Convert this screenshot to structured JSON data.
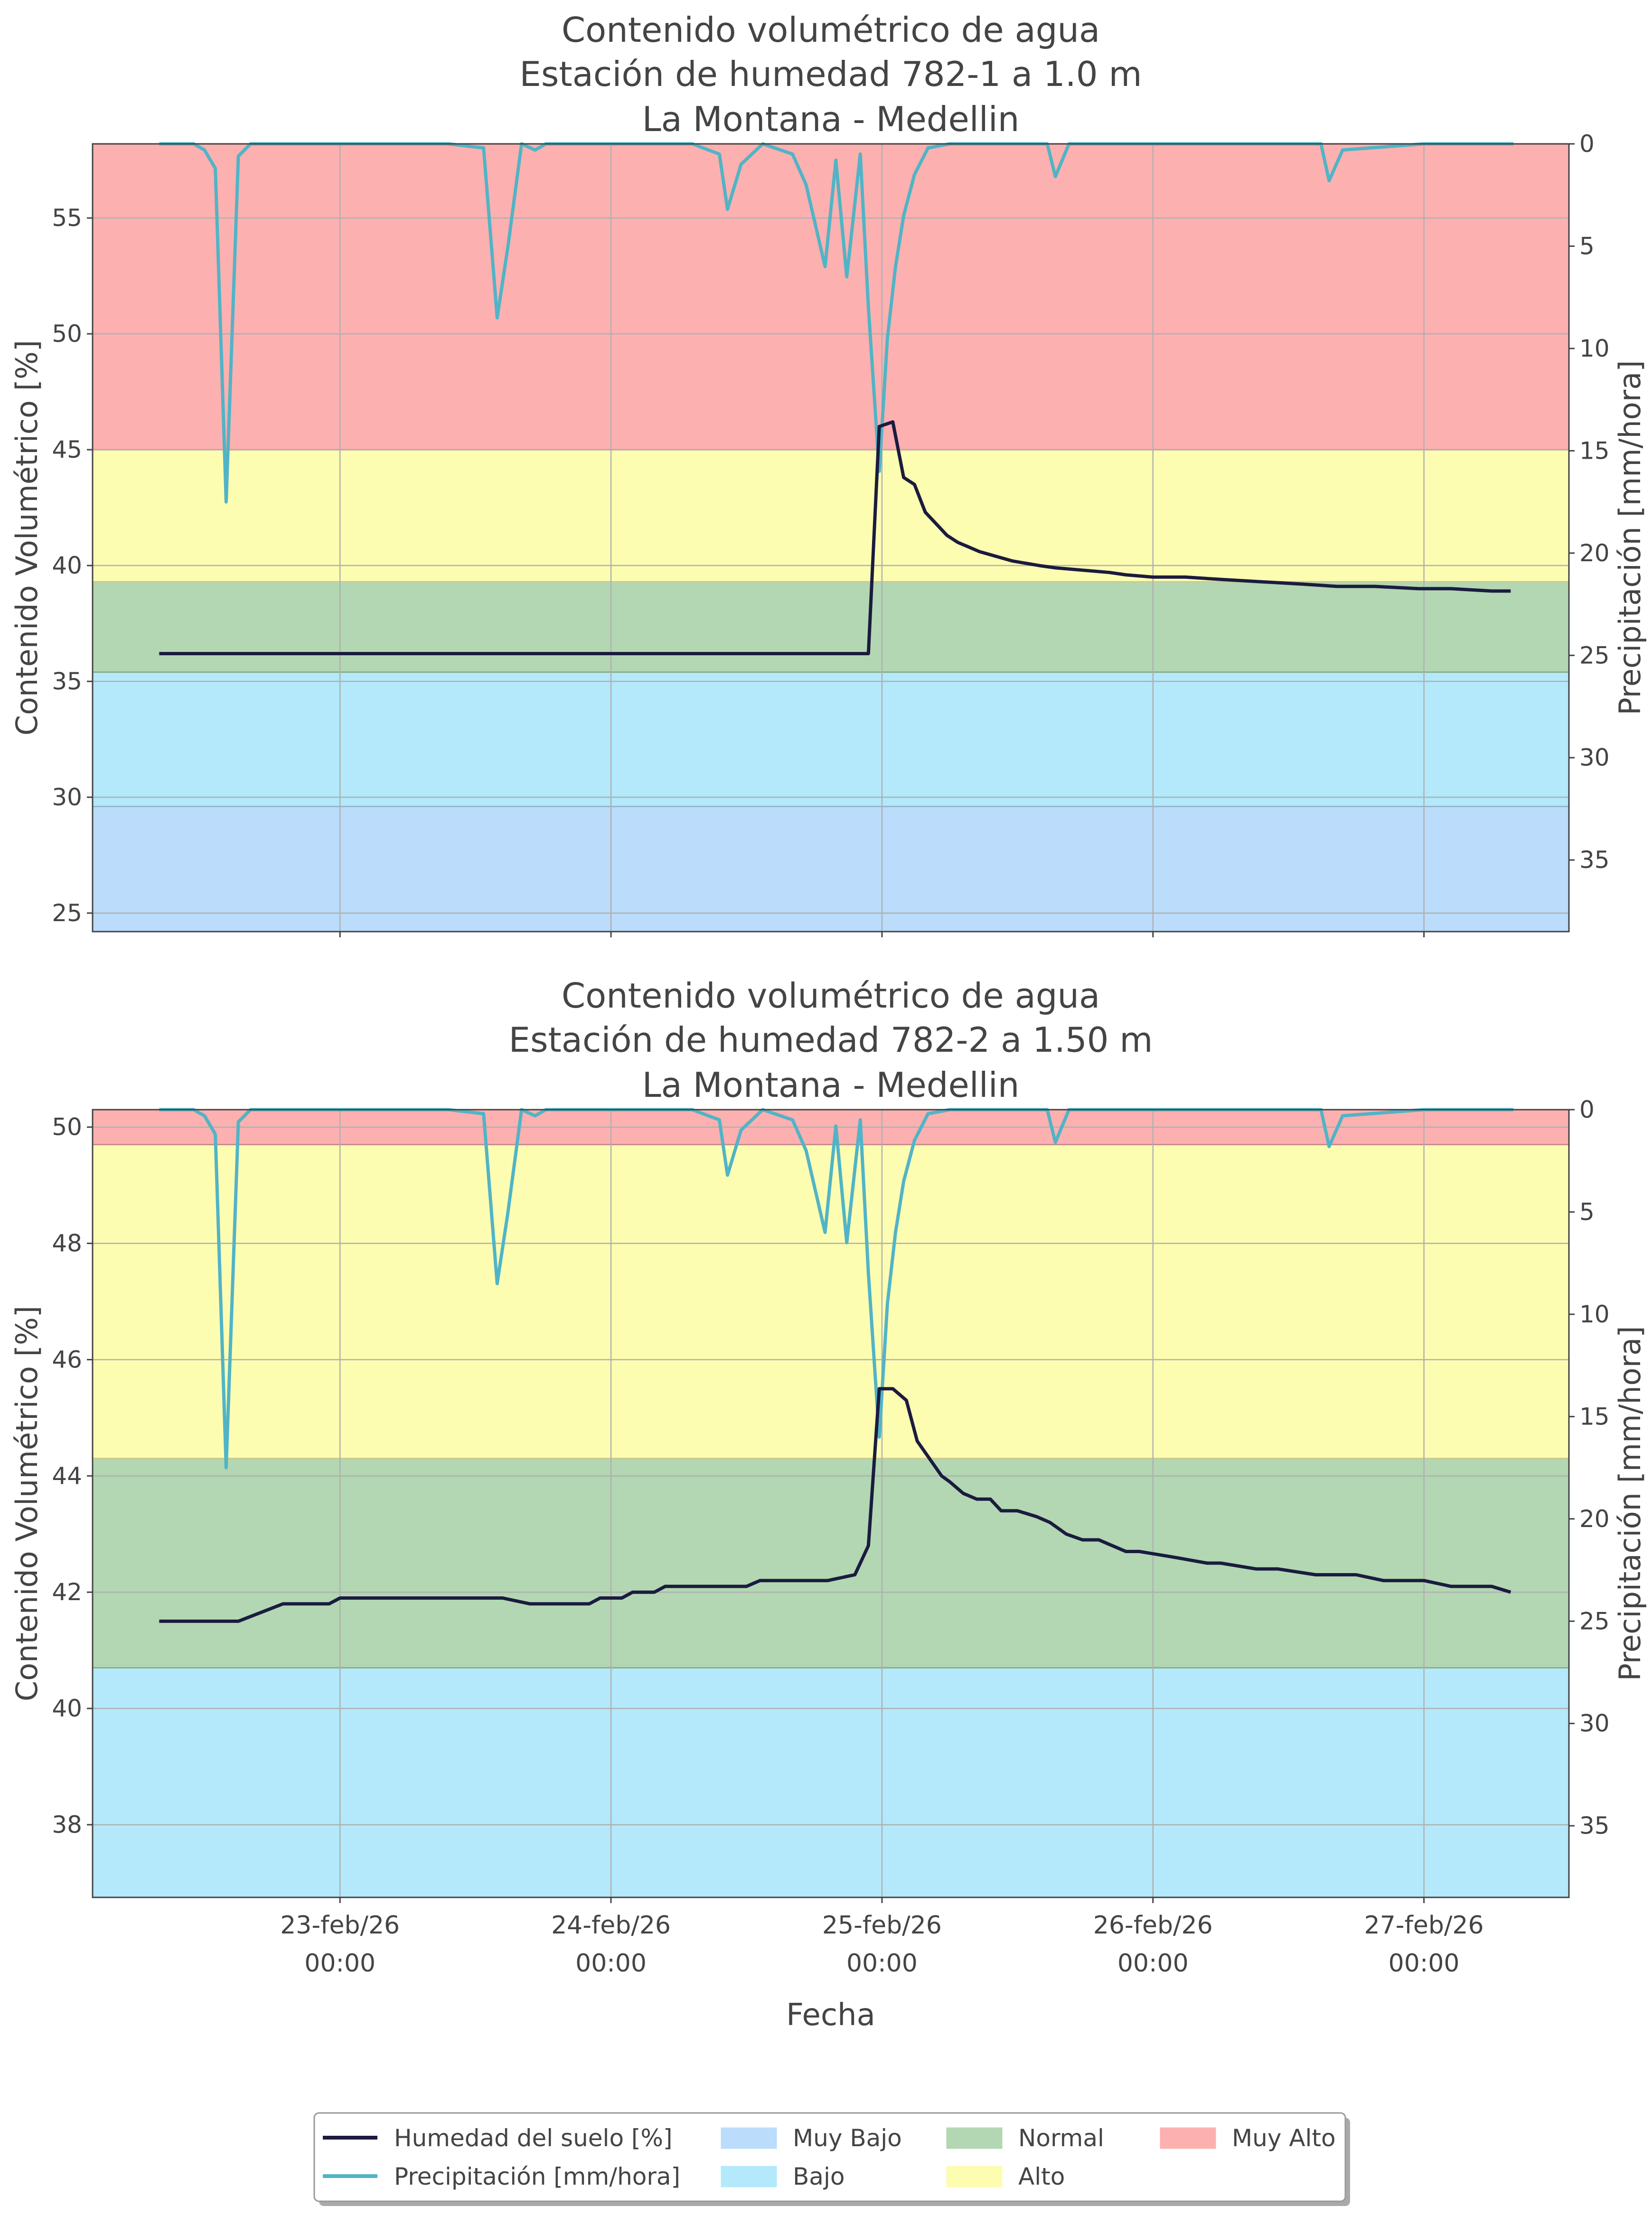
{
  "colors": {
    "muy_bajo": "#bbdcfb",
    "bajo": "#b3e9fb",
    "normal": "#b2d7b2",
    "alto": "#fdfdb2",
    "muy_alto": "#fdb0b0",
    "humidity_line": "#1b1b3f",
    "precip_line": "#51b4c6",
    "grid": "#b0b0b0",
    "axis": "#444444"
  },
  "xaxis": {
    "label": "Fecha",
    "ticks": [
      {
        "t": 1,
        "date": "23-feb/26",
        "time": "00:00"
      },
      {
        "t": 2,
        "date": "24-feb/26",
        "time": "00:00"
      },
      {
        "t": 3,
        "date": "25-feb/26",
        "time": "00:00"
      },
      {
        "t": 4,
        "date": "26-feb/26",
        "time": "00:00"
      },
      {
        "t": 5,
        "date": "27-feb/26",
        "time": "00:00"
      }
    ]
  },
  "legend": {
    "items": [
      {
        "key": "humedad",
        "label": "Humedad del suelo [%]",
        "kind": "line"
      },
      {
        "key": "precip",
        "label": "Precipitación [mm/hora]",
        "kind": "line"
      },
      {
        "key": "muy_bajo",
        "label": "Muy Bajo",
        "kind": "patch"
      },
      {
        "key": "bajo",
        "label": "Bajo",
        "kind": "patch"
      },
      {
        "key": "normal",
        "label": "Normal",
        "kind": "patch"
      },
      {
        "key": "alto",
        "label": "Alto",
        "kind": "patch"
      },
      {
        "key": "muy_alto",
        "label": "Muy Alto",
        "kind": "patch"
      }
    ]
  },
  "chart_data": [
    {
      "type": "line",
      "title": [
        "Contenido volumétrico de agua",
        "Estación de humedad 782-1 a 1.0 m",
        "La Montana - Medellin"
      ],
      "ylabel": "Contenido Volumétrico [%]",
      "y2label": "Precipitación [mm/hora]",
      "xlim": [
        0.087,
        5.535
      ],
      "ylim": [
        24.2,
        58.2
      ],
      "y2lim": [
        0,
        38.5
      ],
      "y2_inverted": true,
      "yticks": [
        25,
        30,
        35,
        40,
        45,
        50,
        55
      ],
      "y2ticks": [
        0,
        5,
        10,
        15,
        20,
        25,
        30,
        35
      ],
      "grid": true,
      "bands": [
        {
          "key": "muy_bajo",
          "from": 24.2,
          "to": 29.6
        },
        {
          "key": "bajo",
          "from": 29.6,
          "to": 35.4
        },
        {
          "key": "normal",
          "from": 35.4,
          "to": 39.3
        },
        {
          "key": "alto",
          "from": 39.3,
          "to": 45.0
        },
        {
          "key": "muy_alto",
          "from": 45.0,
          "to": 58.2
        }
      ],
      "series": [
        {
          "name": "Humedad del suelo [%]",
          "axis": "left",
          "t": [
            0.333,
            1.1,
            2.0,
            2.95,
            2.99,
            3.04,
            3.08,
            3.12,
            3.16,
            3.2,
            3.24,
            3.28,
            3.32,
            3.36,
            3.42,
            3.48,
            3.58,
            3.64,
            3.74,
            3.84,
            3.9,
            4.0,
            4.12,
            4.25,
            4.4,
            4.55,
            4.68,
            4.82,
            4.98,
            5.1,
            5.25,
            5.32
          ],
          "values": [
            36.2,
            36.2,
            36.2,
            36.2,
            46.0,
            46.2,
            43.8,
            43.5,
            42.3,
            41.8,
            41.3,
            41.0,
            40.8,
            40.6,
            40.4,
            40.2,
            40.0,
            39.9,
            39.8,
            39.7,
            39.6,
            39.5,
            39.5,
            39.4,
            39.3,
            39.2,
            39.1,
            39.1,
            39.0,
            39.0,
            38.9,
            38.9
          ]
        }
      ]
    },
    {
      "type": "line",
      "title": [
        "Contenido volumétrico de agua",
        "Estación de humedad 782-2 a 1.50 m",
        "La Montana - Medellin"
      ],
      "ylabel": "Contenido Volumétrico [%]",
      "y2label": "Precipitación [mm/hora]",
      "xlim": [
        0.087,
        5.535
      ],
      "ylim": [
        36.75,
        50.3
      ],
      "y2lim": [
        0,
        38.5
      ],
      "y2_inverted": true,
      "yticks": [
        38,
        40,
        42,
        44,
        46,
        48,
        50
      ],
      "y2ticks": [
        0,
        5,
        10,
        15,
        20,
        25,
        30,
        35
      ],
      "grid": true,
      "bands": [
        {
          "key": "bajo",
          "from": 36.75,
          "to": 40.7
        },
        {
          "key": "normal",
          "from": 40.7,
          "to": 44.3
        },
        {
          "key": "alto",
          "from": 44.3,
          "to": 49.7
        },
        {
          "key": "muy_alto",
          "from": 49.7,
          "to": 50.3
        }
      ],
      "series": [
        {
          "name": "Humedad del suelo [%]",
          "axis": "left",
          "t": [
            0.333,
            0.625,
            0.79,
            0.96,
            1.0,
            1.2,
            1.6,
            1.7,
            1.92,
            1.96,
            2.04,
            2.08,
            2.16,
            2.2,
            2.34,
            2.5,
            2.55,
            2.62,
            2.8,
            2.9,
            2.95,
            2.99,
            3.04,
            3.09,
            3.13,
            3.22,
            3.25,
            3.3,
            3.35,
            3.4,
            3.44,
            3.5,
            3.57,
            3.62,
            3.68,
            3.74,
            3.8,
            3.9,
            3.95,
            4.08,
            4.2,
            4.25,
            4.38,
            4.46,
            4.6,
            4.65,
            4.75,
            4.85,
            5.0,
            5.1,
            5.2,
            5.25,
            5.32
          ],
          "values": [
            41.5,
            41.5,
            41.8,
            41.8,
            41.9,
            41.9,
            41.9,
            41.8,
            41.8,
            41.9,
            41.9,
            42.0,
            42.0,
            42.1,
            42.1,
            42.1,
            42.2,
            42.2,
            42.2,
            42.3,
            42.8,
            45.5,
            45.5,
            45.3,
            44.6,
            44.0,
            43.9,
            43.7,
            43.6,
            43.6,
            43.4,
            43.4,
            43.3,
            43.2,
            43.0,
            42.9,
            42.9,
            42.7,
            42.7,
            42.6,
            42.5,
            42.5,
            42.4,
            42.4,
            42.3,
            42.3,
            42.3,
            42.2,
            42.2,
            42.1,
            42.1,
            42.1,
            42.0
          ]
        }
      ]
    },
    {
      "type": "line",
      "note_series": "Precipitación [mm/hora] shared by both panels, plotted on the inverted right axis",
      "series": [
        {
          "name": "Precipitación [mm/hora]",
          "axis": "right",
          "t": [
            0.333,
            0.46,
            0.5,
            0.54,
            0.58,
            0.625,
            0.67,
            0.72,
            1.0,
            1.4,
            1.53,
            1.58,
            1.62,
            1.67,
            1.72,
            1.76,
            1.83,
            1.87,
            2.0,
            2.3,
            2.4,
            2.43,
            2.48,
            2.56,
            2.67,
            2.72,
            2.79,
            2.83,
            2.87,
            2.92,
            2.95,
            2.99,
            3.02,
            3.05,
            3.08,
            3.12,
            3.17,
            3.25,
            3.35,
            3.61,
            3.64,
            3.69,
            3.75,
            4.0,
            4.5,
            4.62,
            4.65,
            4.7,
            5.0,
            5.33
          ],
          "values": [
            0,
            0,
            0.3,
            1.2,
            17.5,
            0.6,
            0,
            0,
            0,
            0,
            0.2,
            8.5,
            5.0,
            0,
            0.3,
            0,
            0,
            0,
            0,
            0,
            0.5,
            3.2,
            1.0,
            0,
            0.5,
            2.0,
            6.0,
            0.8,
            6.5,
            0.5,
            8.0,
            16.0,
            9.5,
            6.0,
            3.5,
            1.5,
            0.2,
            0,
            0,
            0,
            1.6,
            0,
            0,
            0,
            0,
            0,
            1.8,
            0.3,
            0,
            0
          ]
        }
      ]
    }
  ]
}
